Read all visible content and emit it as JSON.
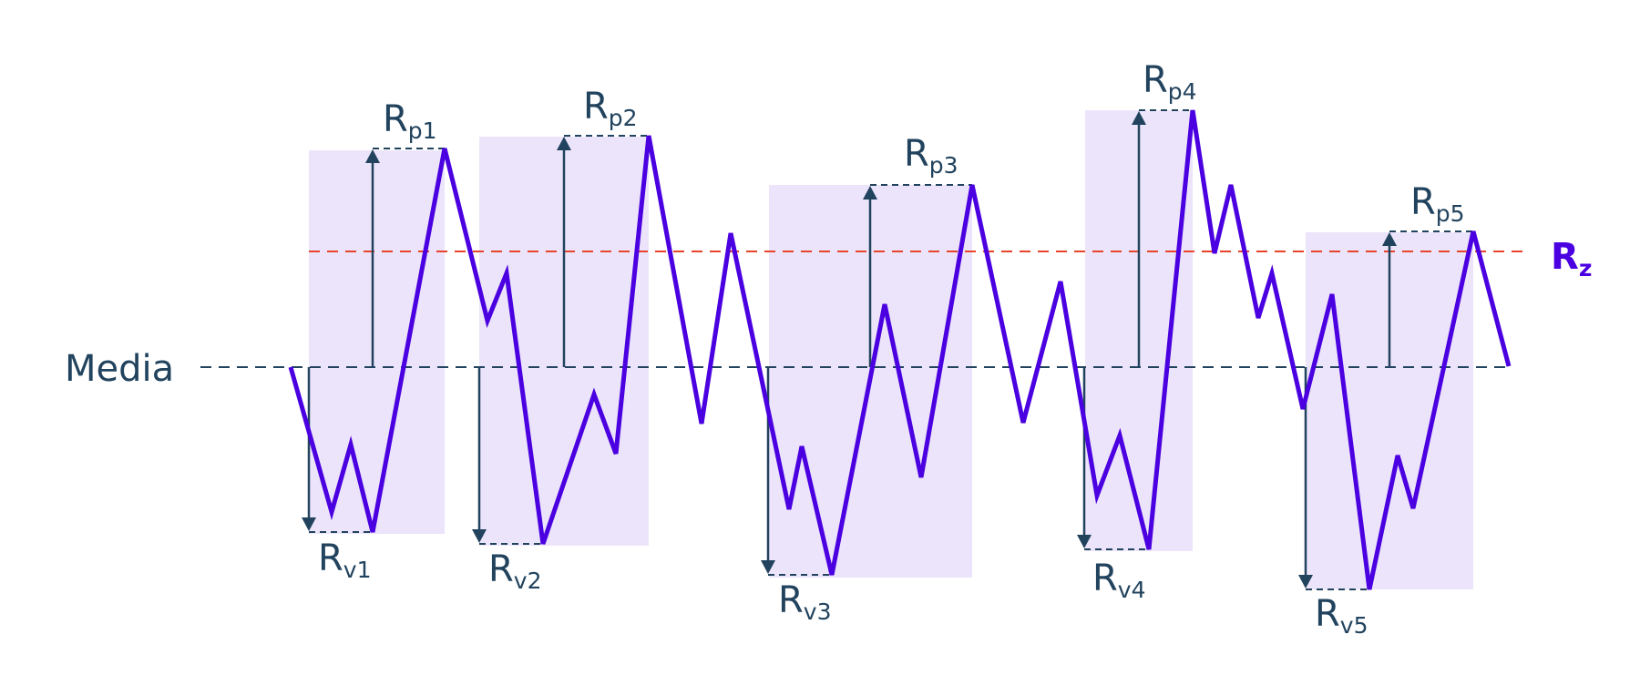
{
  "diagram": {
    "mean_line_label": "Media",
    "threshold_label": {
      "main": "R",
      "sub": "z"
    },
    "peaks": [
      {
        "main": "R",
        "sub": "p1"
      },
      {
        "main": "R",
        "sub": "p2"
      },
      {
        "main": "R",
        "sub": "p3"
      },
      {
        "main": "R",
        "sub": "p4"
      },
      {
        "main": "R",
        "sub": "p5"
      }
    ],
    "valleys": [
      {
        "main": "R",
        "sub": "v1"
      },
      {
        "main": "R",
        "sub": "v2"
      },
      {
        "main": "R",
        "sub": "v3"
      },
      {
        "main": "R",
        "sub": "v4"
      },
      {
        "main": "R",
        "sub": "v5"
      }
    ],
    "colors": {
      "profile": "#4a00e0",
      "sampling_band": "#ece4fa",
      "mean_line": "#22435e",
      "threshold_line": "#e8432b",
      "arrows": "#22435e",
      "threshold_label": "#4a00e0"
    }
  }
}
